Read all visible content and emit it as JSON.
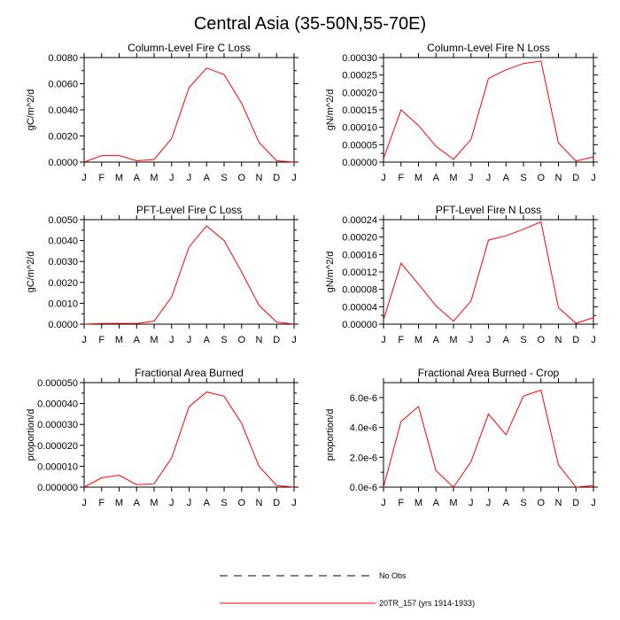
{
  "figure": {
    "title": "Central Asia (35-50N,55-70E)"
  },
  "legend": {
    "entries": [
      {
        "label": "No Obs",
        "style": "dashed",
        "color": "#000000"
      },
      {
        "label": "20TR_157 (yrs 1914-1933)",
        "style": "solid",
        "color": "#ff0000"
      }
    ]
  },
  "chart_data": [
    {
      "type": "line",
      "title": "Column-Level Fire C Loss",
      "xlabel": "",
      "ylabel": "gC/m^2/d",
      "categories": [
        "J",
        "F",
        "M",
        "A",
        "M",
        "J",
        "J",
        "A",
        "S",
        "O",
        "N",
        "D",
        "J"
      ],
      "ylim": [
        0,
        0.008
      ],
      "yticks": [
        0,
        0.002,
        0.004,
        0.006,
        0.008
      ],
      "ytick_labels": [
        "0.0000",
        "0.0020",
        "0.0040",
        "0.0060",
        "0.0080"
      ],
      "series": [
        {
          "name": "20TR_157 (yrs 1914-1933)",
          "color": "#ff0000",
          "values": [
            0.0,
            0.0005,
            0.0005,
            0.0001,
            0.0002,
            0.0018,
            0.0057,
            0.0072,
            0.0067,
            0.0045,
            0.0015,
            0.0001,
            0.0
          ]
        }
      ]
    },
    {
      "type": "line",
      "title": "Column-Level Fire N Loss",
      "xlabel": "",
      "ylabel": "gN/m^2/d",
      "categories": [
        "J",
        "F",
        "M",
        "A",
        "M",
        "J",
        "J",
        "A",
        "S",
        "O",
        "N",
        "D",
        "J"
      ],
      "ylim": [
        0,
        0.0003
      ],
      "yticks": [
        0,
        5e-05,
        0.0001,
        0.00015,
        0.0002,
        0.00025,
        0.0003
      ],
      "ytick_labels": [
        "0.00000",
        "0.00005",
        "0.00010",
        "0.00015",
        "0.00020",
        "0.00025",
        "0.00030"
      ],
      "series": [
        {
          "name": "20TR_157 (yrs 1914-1933)",
          "color": "#ff0000",
          "values": [
            1e-05,
            0.00015,
            0.000105,
            4.5e-05,
            8e-06,
            6.5e-05,
            0.00024,
            0.000265,
            0.000283,
            0.00029,
            5.5e-05,
            3e-06,
            1.5e-05
          ]
        }
      ]
    },
    {
      "type": "line",
      "title": "PFT-Level Fire C Loss",
      "xlabel": "",
      "ylabel": "gC/m^2/d",
      "categories": [
        "J",
        "F",
        "M",
        "A",
        "M",
        "J",
        "J",
        "A",
        "S",
        "O",
        "N",
        "D",
        "J"
      ],
      "ylim": [
        0,
        0.005
      ],
      "yticks": [
        0,
        0.001,
        0.002,
        0.003,
        0.004,
        0.005
      ],
      "ytick_labels": [
        "0.0000",
        "0.0010",
        "0.0020",
        "0.0030",
        "0.0040",
        "0.0050"
      ],
      "series": [
        {
          "name": "20TR_157 (yrs 1914-1933)",
          "color": "#ff0000",
          "values": [
            0.0,
            3e-05,
            4e-05,
            3e-05,
            0.00015,
            0.0013,
            0.0037,
            0.0047,
            0.004,
            0.0025,
            0.0009,
            0.0001,
            0.0
          ]
        }
      ]
    },
    {
      "type": "line",
      "title": "PFT-Level Fire N Loss",
      "xlabel": "",
      "ylabel": "gN/m^2/d",
      "categories": [
        "J",
        "F",
        "M",
        "A",
        "M",
        "J",
        "J",
        "A",
        "S",
        "O",
        "N",
        "D",
        "J"
      ],
      "ylim": [
        0,
        0.00024
      ],
      "yticks": [
        0,
        4e-05,
        8e-05,
        0.00012,
        0.00016,
        0.0002,
        0.00024
      ],
      "ytick_labels": [
        "0.00000",
        "0.00004",
        "0.00008",
        "0.00012",
        "0.00016",
        "0.00020",
        "0.00024"
      ],
      "series": [
        {
          "name": "20TR_157 (yrs 1914-1933)",
          "color": "#ff0000",
          "values": [
            1e-05,
            0.00014,
            9.2e-05,
            4.2e-05,
            7e-06,
            5.3e-05,
            0.000193,
            0.000203,
            0.000218,
            0.000235,
            3.8e-05,
            2e-06,
            1.5e-05
          ]
        }
      ]
    },
    {
      "type": "line",
      "title": "Fractional Area Burned",
      "xlabel": "",
      "ylabel": "proportion/d",
      "categories": [
        "J",
        "F",
        "M",
        "A",
        "M",
        "J",
        "J",
        "A",
        "S",
        "O",
        "N",
        "D",
        "J"
      ],
      "ylim": [
        0,
        5e-05
      ],
      "yticks": [
        0,
        1e-05,
        2e-05,
        3e-05,
        4e-05,
        5e-05
      ],
      "ytick_labels": [
        "0.000000",
        "0.000010",
        "0.000020",
        "0.000030",
        "0.000040",
        "0.000050"
      ],
      "series": [
        {
          "name": "20TR_157 (yrs 1914-1933)",
          "color": "#ff0000",
          "values": [
            0.0,
            4.5e-06,
            5.7e-06,
            1.2e-06,
            1.6e-06,
            1.4e-05,
            3.85e-05,
            4.55e-05,
            4.35e-05,
            3.05e-05,
            9.9e-06,
            8e-07,
            0.0
          ]
        }
      ]
    },
    {
      "type": "line",
      "title": "Fractional Area Burned - Crop",
      "xlabel": "",
      "ylabel": "proportion/d",
      "categories": [
        "J",
        "F",
        "M",
        "A",
        "M",
        "J",
        "J",
        "A",
        "S",
        "O",
        "N",
        "D",
        "J"
      ],
      "ylim": [
        0,
        7e-06
      ],
      "yticks": [
        0,
        2e-06,
        4e-06,
        6e-06
      ],
      "ytick_labels": [
        "0.0e-6",
        "2.0e-6",
        "4.0e-6",
        "6.0e-6"
      ],
      "series": [
        {
          "name": "20TR_157 (yrs 1914-1933)",
          "color": "#ff0000",
          "values": [
            0.0,
            4.4e-06,
            5.4e-06,
            1.1e-06,
            0.0,
            1.7e-06,
            4.9e-06,
            3.5e-06,
            6.1e-06,
            6.5e-06,
            1.5e-06,
            0.0,
            1e-07
          ]
        }
      ]
    }
  ]
}
